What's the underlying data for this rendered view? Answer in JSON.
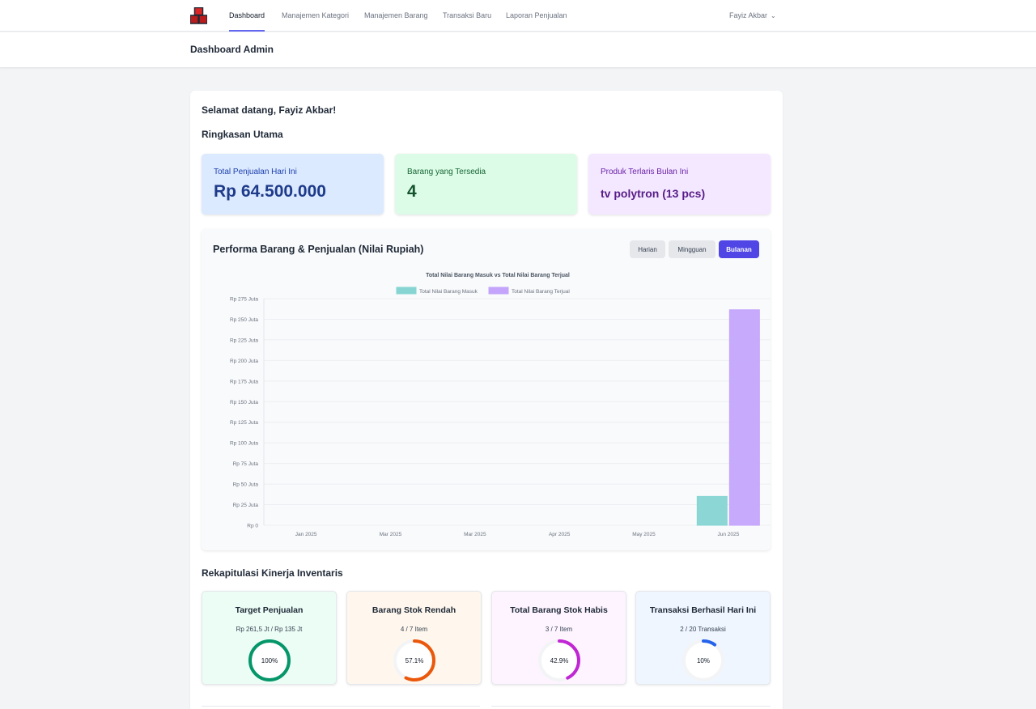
{
  "nav": {
    "logo_icon": "boxes-logo-icon",
    "links": [
      "Dashboard",
      "Manajemen Kategori",
      "Manajemen Barang",
      "Transaksi Baru",
      "Laporan Penjualan"
    ],
    "active_link": "Dashboard",
    "user_name": "Fayiz Akbar",
    "user_chevron": "⌄"
  },
  "header": {
    "title": "Dashboard Admin"
  },
  "main": {
    "welcome": "Selamat datang, Fayiz Akbar!",
    "summary_title": "Ringkasan Utama",
    "stats": [
      {
        "label": "Total Penjualan Hari Ini",
        "value": "Rp 64.500.000",
        "color": "#dbeafe"
      },
      {
        "label": "Barang yang Tersedia",
        "value": "4",
        "color": "#dcfce7"
      },
      {
        "label": "Produk Terlaris Bulan Ini",
        "value": "tv polytron (13 pcs)",
        "color": "#f3e8ff"
      }
    ],
    "chart_panel": {
      "title": "Performa Barang & Penjualan (Nilai Rupiah)",
      "buttons": [
        "Harian",
        "Mingguan",
        "Bulanan"
      ],
      "active_button": "Bulanan"
    },
    "rekap_title": "Rekapitulasi Kinerja Inventaris",
    "rekap": [
      {
        "title": "Target Penjualan",
        "sub": "Rp 261,5 Jt / Rp 135 Jt",
        "percent_label": "100%",
        "fraction": 1.0,
        "color": "#059669",
        "bg": "#ecfdf5"
      },
      {
        "title": "Barang Stok Rendah",
        "sub": "4 / 7 Item",
        "percent_label": "57.1%",
        "fraction": 0.571,
        "color": "#ea580c",
        "bg": "#fff7ed"
      },
      {
        "title": "Total Barang Stok Habis",
        "sub": "3 / 7 Item",
        "percent_label": "42.9%",
        "fraction": 0.429,
        "color": "#c026d3",
        "bg": "#fdf4ff"
      },
      {
        "title": "Transaksi Berhasil Hari Ini",
        "sub": "2 / 20 Transaksi",
        "percent_label": "10%",
        "fraction": 0.1,
        "color": "#2563eb",
        "bg": "#eff6ff"
      }
    ]
  },
  "chart_data": {
    "type": "bar",
    "title": "Total Nilai Barang Masuk vs Total Nilai Barang Terjual",
    "categories": [
      "Jan 2025",
      "Mar 2025",
      "Mar 2025",
      "Apr 2025",
      "May 2025",
      "Jun 2025"
    ],
    "series": [
      {
        "name": "Total Nilai Barang Masuk",
        "values": [
          0,
          0,
          0,
          0,
          0,
          35
        ],
        "color": "#86d5d3"
      },
      {
        "name": "Total Nilai Barang Terjual",
        "values": [
          0,
          0,
          0,
          0,
          0,
          261.5
        ],
        "color": "#c4a5fb"
      }
    ],
    "yticks": [
      "Rp 0",
      "Rp 25 Juta",
      "Rp 50 Juta",
      "Rp 75 Juta",
      "Rp 100 Juta",
      "Rp 125 Juta",
      "Rp 150 Juta",
      "Rp 175 Juta",
      "Rp 200 Juta",
      "Rp 225 Juta",
      "Rp 250 Juta",
      "Rp 275 Juta"
    ],
    "ylim": [
      0,
      275
    ],
    "ystep": 25,
    "grid": true,
    "legend_position": "top-center"
  }
}
